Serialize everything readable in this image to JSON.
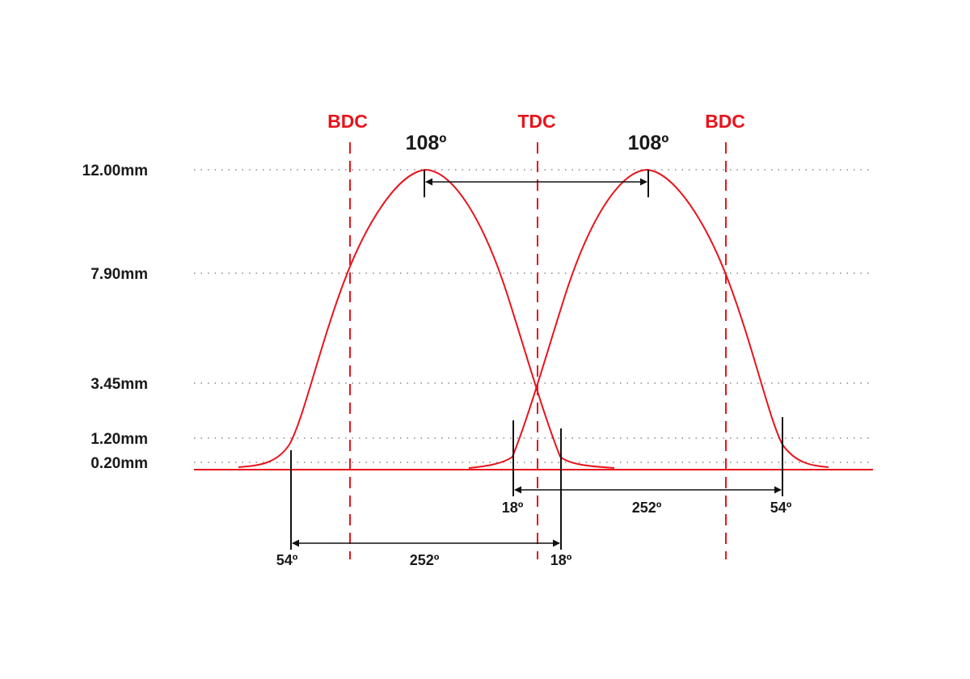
{
  "colors": {
    "curve": "#e8141c",
    "marker": "#e8141c",
    "dimension": "#111111",
    "grid": "#888888"
  },
  "lift_levels": [
    {
      "label": "12.00mm",
      "mm": 12.0
    },
    {
      "label": "7.90mm",
      "mm": 7.9
    },
    {
      "label": "3.45mm",
      "mm": 3.45
    },
    {
      "label": "1.20mm",
      "mm": 1.2
    },
    {
      "label": "0.20mm",
      "mm": 0.2
    }
  ],
  "markers": [
    {
      "id": "bdc-left",
      "label": "BDC"
    },
    {
      "id": "tdc",
      "label": "TDC"
    },
    {
      "id": "bdc-right",
      "label": "BDC"
    }
  ],
  "peaks": {
    "left_label": "108º",
    "right_label": "108º"
  },
  "angles": {
    "lower": {
      "start": "54º",
      "duration": "252º",
      "end": "18º"
    },
    "upper": {
      "start": "18º",
      "duration": "252º",
      "end": "54º"
    }
  }
}
